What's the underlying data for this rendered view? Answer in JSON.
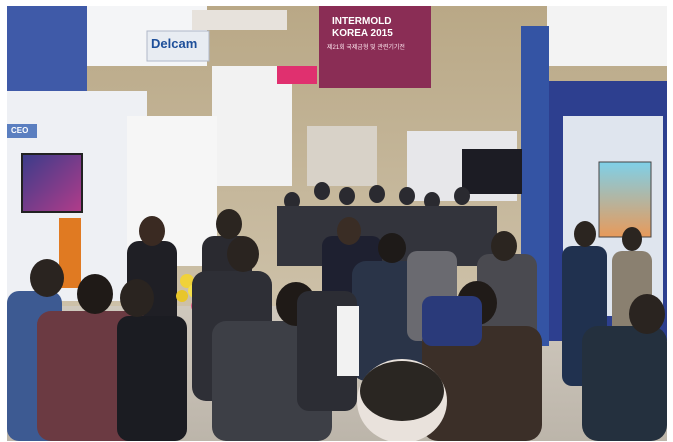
{
  "photo": {
    "banner": {
      "line1": "INTERMOLD",
      "line2": "KOREA 2015",
      "line3": "제21회 국제금형 및 관련기기전"
    },
    "booth_signs": {
      "delcam": "Delcam",
      "ceo": "CEO"
    },
    "colors": {
      "banner_bg": "#8a2d55",
      "booth_blue": "#2d3f8f",
      "wall": "#e9ecf0",
      "crowd_dark": "#2a2a30"
    }
  }
}
